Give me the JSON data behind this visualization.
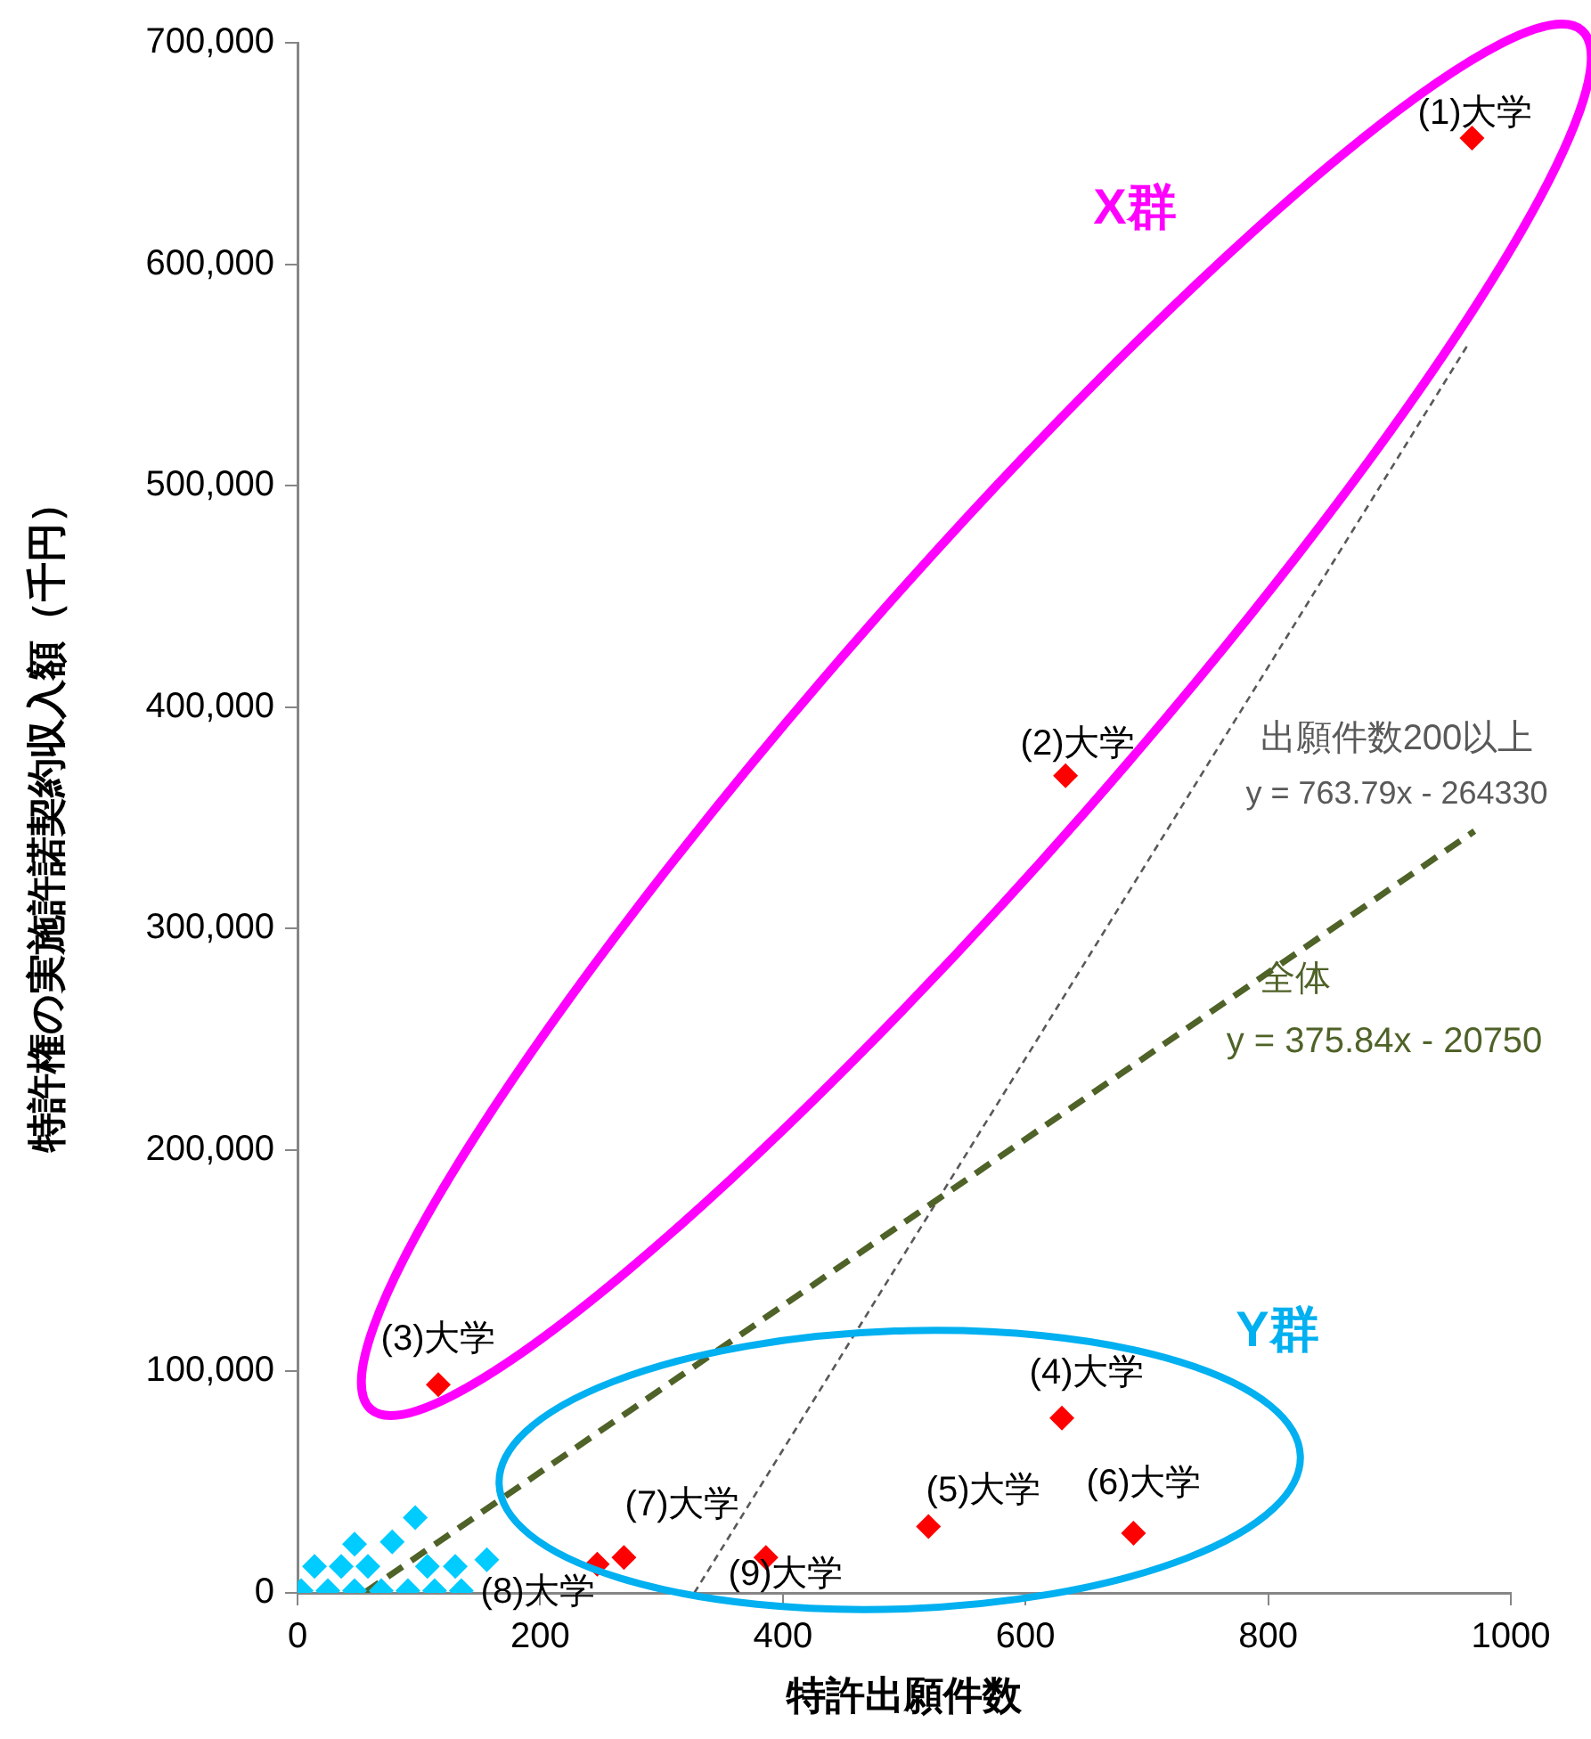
{
  "chart_data": {
    "type": "scatter",
    "xlabel": "特許出願件数",
    "ylabel": "特許権の実施許諾契約収入額（千円）",
    "xlim": [
      0,
      1000
    ],
    "xticks": [
      0,
      200,
      400,
      600,
      800,
      1000
    ],
    "ylim": [
      0,
      700000
    ],
    "yticks": [
      0,
      {
        "value": 100000,
        "label": "100,000"
      },
      {
        "value": 200000,
        "label": "200,000"
      },
      {
        "value": 300000,
        "label": "300,000"
      },
      {
        "value": 400000,
        "label": "400,000"
      },
      {
        "value": 500000,
        "label": "500,000"
      },
      {
        "value": 600000,
        "label": "600,000"
      },
      {
        "value": 700000,
        "label": "700,000"
      }
    ],
    "grid": false,
    "legend": false,
    "marker": "diamond",
    "series": [
      {
        "type": "scatter",
        "color": "#00ccff",
        "x": [
          3,
          25,
          47,
          69,
          91,
          113,
          135,
          14,
          36,
          58,
          107,
          130,
          156,
          47,
          78,
          97
        ],
        "values": [
          1000,
          1000,
          1000,
          1000,
          1000,
          1000,
          1000,
          12000,
          12000,
          12000,
          12000,
          12000,
          15000,
          22000,
          23000,
          34000
        ]
      },
      {
        "type": "scatter",
        "color": "#ff0000",
        "x": [
          968,
          633,
          116,
          630,
          520,
          689,
          269,
          247,
          386
        ],
        "values": [
          657000,
          369000,
          94000,
          79000,
          30000,
          27000,
          16000,
          13000,
          16000
        ]
      },
      {
        "type": "line",
        "color": "#4f6228",
        "line_style": "dashed",
        "marker": "none",
        "x": [
          55,
          970
        ],
        "values": [
          0,
          344000
        ]
      },
      {
        "type": "line",
        "color": "#595959",
        "line_style": "dotted",
        "marker": "none",
        "x": [
          327,
          965
        ],
        "values": [
          0,
          564000
        ]
      }
    ],
    "annotations": [
      "(1)大学",
      "(2)大学",
      "(3)大学",
      "(4)大学",
      "(5)大学",
      "(6)大学",
      "(7)大学",
      "(8)大学",
      "(9)大学",
      "出願件数200以上",
      "y = 763.79x - 264330",
      "全体",
      "y = 375.84x - 20750",
      "X群",
      "Y群"
    ]
  }
}
